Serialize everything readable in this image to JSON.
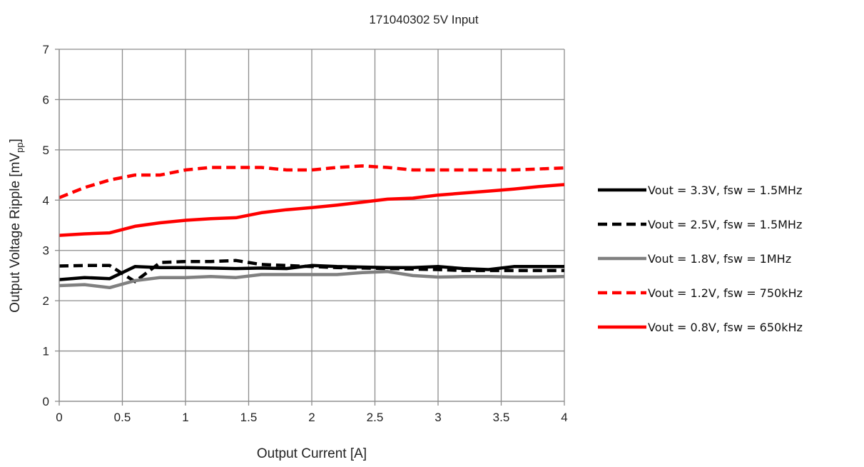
{
  "chart_data": {
    "type": "line",
    "title": "171040302  5V Input",
    "xlabel": "Output Current [A]",
    "ylabel_main": "Output Voltage Ripple [mV",
    "ylabel_sub": "pp",
    "ylabel_close": "]",
    "xlim": [
      0,
      4
    ],
    "ylim": [
      0,
      7
    ],
    "xticks": [
      "0",
      "0.5",
      "1",
      "1.5",
      "2",
      "2.5",
      "3",
      "3.5",
      "4"
    ],
    "yticks": [
      "0",
      "1",
      "2",
      "3",
      "4",
      "5",
      "6",
      "7"
    ],
    "grid": true,
    "legend_position": "right",
    "x": [
      0,
      0.2,
      0.4,
      0.6,
      0.8,
      1.0,
      1.2,
      1.4,
      1.6,
      1.8,
      2.0,
      2.2,
      2.4,
      2.6,
      2.8,
      3.0,
      3.2,
      3.4,
      3.6,
      3.8,
      4.0
    ],
    "series": [
      {
        "name": "Vout = 3.3V, fsw = 1.5MHz",
        "color": "#000000",
        "dash": "solid",
        "values": [
          2.42,
          2.46,
          2.44,
          2.68,
          2.66,
          2.66,
          2.65,
          2.64,
          2.65,
          2.64,
          2.7,
          2.68,
          2.67,
          2.66,
          2.66,
          2.68,
          2.64,
          2.62,
          2.68,
          2.68,
          2.68
        ]
      },
      {
        "name": "Vout = 2.5V, fsw = 1.5MHz",
        "color": "#000000",
        "dash": "dashed",
        "values": [
          2.69,
          2.7,
          2.7,
          2.38,
          2.76,
          2.78,
          2.78,
          2.8,
          2.72,
          2.7,
          2.68,
          2.66,
          2.65,
          2.64,
          2.63,
          2.62,
          2.6,
          2.6,
          2.6,
          2.6,
          2.6
        ]
      },
      {
        "name": "Vout = 1.8V, fsw = 1MHz",
        "color": "#808080",
        "dash": "solid",
        "values": [
          2.3,
          2.32,
          2.26,
          2.4,
          2.46,
          2.46,
          2.48,
          2.46,
          2.52,
          2.52,
          2.52,
          2.52,
          2.56,
          2.58,
          2.5,
          2.47,
          2.48,
          2.48,
          2.47,
          2.47,
          2.48
        ]
      },
      {
        "name": "Vout = 1.2V, fsw = 750kHz",
        "color": "#ff0000",
        "dash": "dashed",
        "values": [
          4.05,
          4.25,
          4.4,
          4.5,
          4.5,
          4.6,
          4.65,
          4.65,
          4.65,
          4.6,
          4.6,
          4.65,
          4.68,
          4.65,
          4.6,
          4.6,
          4.6,
          4.6,
          4.6,
          4.62,
          4.64
        ]
      },
      {
        "name": "Vout = 0.8V, fsw = 650kHz",
        "color": "#ff0000",
        "dash": "solid",
        "values": [
          3.3,
          3.33,
          3.35,
          3.48,
          3.55,
          3.6,
          3.63,
          3.65,
          3.75,
          3.81,
          3.85,
          3.9,
          3.96,
          4.02,
          4.04,
          4.1,
          4.14,
          4.18,
          4.22,
          4.27,
          4.31
        ]
      }
    ]
  }
}
